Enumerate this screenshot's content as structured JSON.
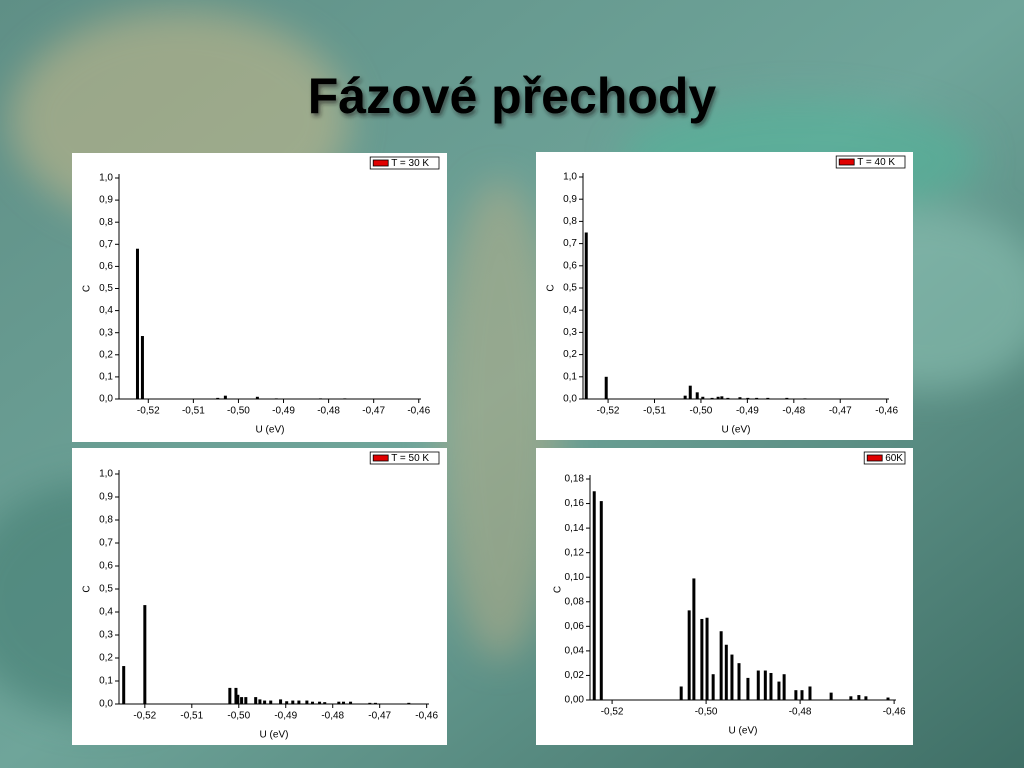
{
  "title": "Fázové přechody",
  "chart_data": [
    {
      "type": "bar",
      "x_label": "U (eV)",
      "y_label": "C",
      "legend": "upper right",
      "legend_swatch_color": "#e00000",
      "x": [
        -0.5224,
        -0.5213,
        -0.5046,
        -0.5029,
        -0.4958,
        -0.4916,
        -0.4818,
        -0.4764
      ],
      "series": [
        {
          "name": "T = 30 K",
          "color": "#000000",
          "values": [
            0.68,
            0.285,
            0.005,
            0.015,
            0.01,
            0.003,
            0.003,
            0.003
          ]
        }
      ],
      "xlim": [
        -0.5265,
        -0.4595
      ],
      "xticks": [
        {
          "value": -0.52,
          "label": "-0,52"
        },
        {
          "value": -0.51,
          "label": "-0,51"
        },
        {
          "value": -0.5,
          "label": "-0,50"
        },
        {
          "value": -0.49,
          "label": "-0,49"
        },
        {
          "value": -0.48,
          "label": "-0,48"
        },
        {
          "value": -0.47,
          "label": "-0,47"
        },
        {
          "value": -0.46,
          "label": "-0,46"
        }
      ],
      "ylim": [
        0,
        1
      ],
      "yticks": [
        {
          "value": 0,
          "label": "0,0"
        },
        {
          "value": 0.1,
          "label": "0,1"
        },
        {
          "value": 0.2,
          "label": "0,2"
        },
        {
          "value": 0.3,
          "label": "0,3"
        },
        {
          "value": 0.4,
          "label": "0,4"
        },
        {
          "value": 0.5,
          "label": "0,5"
        },
        {
          "value": 0.6,
          "label": "0,6"
        },
        {
          "value": 0.7,
          "label": "0,7"
        },
        {
          "value": 0.8,
          "label": "0,8"
        },
        {
          "value": 0.9,
          "label": "0,9"
        },
        {
          "value": 1,
          "label": "1,0"
        }
      ]
    },
    {
      "type": "bar",
      "x_label": "U (eV)",
      "y_label": "C",
      "legend": "upper right",
      "legend_swatch_color": "#e00000",
      "x": [
        -0.5247,
        -0.5204,
        -0.5034,
        -0.5023,
        -0.5008,
        -0.4996,
        -0.4976,
        -0.4963,
        -0.4955,
        -0.4942,
        -0.4916,
        -0.4899,
        -0.488,
        -0.4856,
        -0.4815,
        -0.4776
      ],
      "series": [
        {
          "name": "T = 40 K",
          "color": "#000000",
          "values": [
            0.75,
            0.1,
            0.015,
            0.06,
            0.03,
            0.01,
            0.005,
            0.01,
            0.012,
            0.005,
            0.008,
            0.005,
            0.005,
            0.005,
            0.005,
            0.003
          ]
        }
      ],
      "xlim": [
        -0.5254,
        -0.4595
      ],
      "xticks": [
        {
          "value": -0.52,
          "label": "-0,52"
        },
        {
          "value": -0.51,
          "label": "-0,51"
        },
        {
          "value": -0.5,
          "label": "-0,50"
        },
        {
          "value": -0.49,
          "label": "-0,49"
        },
        {
          "value": -0.48,
          "label": "-0,48"
        },
        {
          "value": -0.47,
          "label": "-0,47"
        },
        {
          "value": -0.46,
          "label": "-0,46"
        }
      ],
      "ylim": [
        0,
        1
      ],
      "yticks": [
        {
          "value": 0,
          "label": "0,0"
        },
        {
          "value": 0.1,
          "label": "0,1"
        },
        {
          "value": 0.2,
          "label": "0,2"
        },
        {
          "value": 0.3,
          "label": "0,3"
        },
        {
          "value": 0.4,
          "label": "0,4"
        },
        {
          "value": 0.5,
          "label": "0,5"
        },
        {
          "value": 0.6,
          "label": "0,6"
        },
        {
          "value": 0.7,
          "label": "0,7"
        },
        {
          "value": 0.8,
          "label": "0,8"
        },
        {
          "value": 0.9,
          "label": "0,9"
        },
        {
          "value": 1,
          "label": "1,0"
        }
      ]
    },
    {
      "type": "bar",
      "x_label": "U (eV)",
      "y_label": "C",
      "legend": "upper right",
      "legend_swatch_color": "#e00000",
      "x": [
        -0.5245,
        -0.52,
        -0.5019,
        -0.5006,
        -0.5002,
        -0.4994,
        -0.4985,
        -0.4964,
        -0.4955,
        -0.4945,
        -0.4932,
        -0.4911,
        -0.4898,
        -0.4885,
        -0.4872,
        -0.4855,
        -0.4843,
        -0.4828,
        -0.4817,
        -0.4787,
        -0.4777,
        -0.4762,
        -0.4721,
        -0.4709,
        -0.4638
      ],
      "series": [
        {
          "name": "T = 50 K",
          "color": "#000000",
          "values": [
            0.165,
            0.43,
            0.07,
            0.07,
            0.04,
            0.03,
            0.03,
            0.03,
            0.02,
            0.015,
            0.015,
            0.02,
            0.012,
            0.015,
            0.015,
            0.015,
            0.01,
            0.01,
            0.008,
            0.01,
            0.01,
            0.01,
            0.005,
            0.005,
            0.005
          ]
        }
      ],
      "xlim": [
        -0.5255,
        -0.4595
      ],
      "xticks": [
        {
          "value": -0.52,
          "label": "-0,52"
        },
        {
          "value": -0.51,
          "label": "-0,51"
        },
        {
          "value": -0.5,
          "label": "-0,50"
        },
        {
          "value": -0.49,
          "label": "-0,49"
        },
        {
          "value": -0.48,
          "label": "-0,48"
        },
        {
          "value": -0.47,
          "label": "-0,47"
        },
        {
          "value": -0.46,
          "label": "-0,46"
        }
      ],
      "ylim": [
        0,
        1
      ],
      "yticks": [
        {
          "value": 0,
          "label": "0,0"
        },
        {
          "value": 0.1,
          "label": "0,1"
        },
        {
          "value": 0.2,
          "label": "0,2"
        },
        {
          "value": 0.3,
          "label": "0,3"
        },
        {
          "value": 0.4,
          "label": "0,4"
        },
        {
          "value": 0.5,
          "label": "0,5"
        },
        {
          "value": 0.6,
          "label": "0,6"
        },
        {
          "value": 0.7,
          "label": "0,7"
        },
        {
          "value": 0.8,
          "label": "0,8"
        },
        {
          "value": 0.9,
          "label": "0,9"
        },
        {
          "value": 1,
          "label": "1,0"
        }
      ]
    },
    {
      "type": "bar",
      "x_label": "U (eV)",
      "y_label": "C",
      "legend": "upper right",
      "legend_swatch_color": "#e00000",
      "x": [
        -0.5238,
        -0.5223,
        -0.5053,
        -0.5036,
        -0.5026,
        -0.5009,
        -0.4998,
        -0.4985,
        -0.4968,
        -0.4957,
        -0.4945,
        -0.493,
        -0.4911,
        -0.4889,
        -0.4874,
        -0.4862,
        -0.4845,
        -0.4834,
        -0.4809,
        -0.4796,
        -0.4779,
        -0.4734,
        -0.4692,
        -0.4675,
        -0.466,
        -0.4613
      ],
      "series": [
        {
          "name": "60K",
          "color": "#000000",
          "values": [
            0.17,
            0.162,
            0.011,
            0.073,
            0.099,
            0.066,
            0.067,
            0.021,
            0.056,
            0.045,
            0.037,
            0.03,
            0.018,
            0.024,
            0.024,
            0.022,
            0.015,
            0.021,
            0.008,
            0.008,
            0.011,
            0.006,
            0.003,
            0.004,
            0.003,
            0.002
          ]
        }
      ],
      "xlim": [
        -0.5247,
        -0.4596
      ],
      "xticks": [
        {
          "value": -0.52,
          "label": "-0,52"
        },
        {
          "value": -0.5,
          "label": "-0,50"
        },
        {
          "value": -0.48,
          "label": "-0,48"
        },
        {
          "value": -0.46,
          "label": "-0,46"
        }
      ],
      "ylim": [
        0,
        0.18
      ],
      "yticks": [
        {
          "value": 0,
          "label": "0,00"
        },
        {
          "value": 0.02,
          "label": "0,02"
        },
        {
          "value": 0.04,
          "label": "0,04"
        },
        {
          "value": 0.06,
          "label": "0,06"
        },
        {
          "value": 0.08,
          "label": "0,08"
        },
        {
          "value": 0.1,
          "label": "0,10"
        },
        {
          "value": 0.12,
          "label": "0,12"
        },
        {
          "value": 0.14,
          "label": "0,14"
        },
        {
          "value": 0.16,
          "label": "0,16"
        },
        {
          "value": 0.18,
          "label": "0,18"
        }
      ]
    }
  ]
}
